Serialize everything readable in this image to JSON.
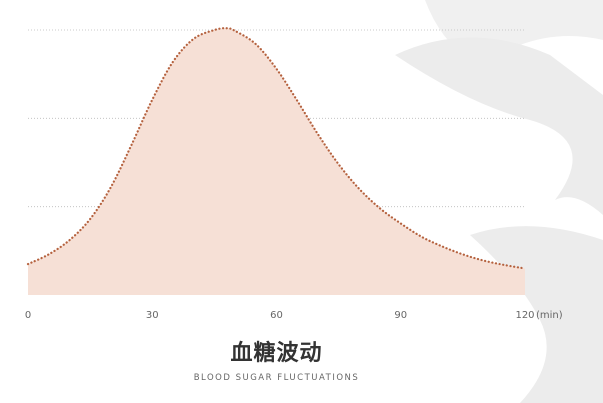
{
  "caption": {
    "title": "血糖波动",
    "subtitle": "BLOOD SUGAR FLUCTUATIONS"
  },
  "chart_data": {
    "type": "area",
    "title": "血糖波动",
    "subtitle": "BLOOD SUGAR FLUCTUATIONS",
    "xlabel": "",
    "x_unit": "(min)",
    "ylabel": "",
    "xlim": [
      0,
      120
    ],
    "ylim": [
      0,
      3
    ],
    "x_ticks": [
      0,
      30,
      60,
      90,
      120
    ],
    "x_tick_labels": [
      "0",
      "30",
      "60",
      "90",
      "120"
    ],
    "y_gridlines": [
      1,
      2,
      3
    ],
    "grid": "horizontal dotted",
    "legend": "none",
    "series": [
      {
        "x": [
          0,
          5,
          10,
          15,
          20,
          25,
          30,
          35,
          40,
          45,
          48,
          50,
          55,
          60,
          65,
          70,
          75,
          80,
          85,
          90,
          95,
          100,
          105,
          110,
          115,
          120
        ],
        "y": [
          0.35,
          0.46,
          0.62,
          0.86,
          1.22,
          1.7,
          2.21,
          2.64,
          2.9,
          3.0,
          3.02,
          2.99,
          2.84,
          2.56,
          2.2,
          1.82,
          1.48,
          1.2,
          0.98,
          0.81,
          0.66,
          0.55,
          0.46,
          0.39,
          0.34,
          0.3
        ]
      }
    ],
    "colors": {
      "fill": "#f6e0d6",
      "line": "#b5623f",
      "grid": "#bbbbbb",
      "watermark": "#efefef"
    }
  }
}
